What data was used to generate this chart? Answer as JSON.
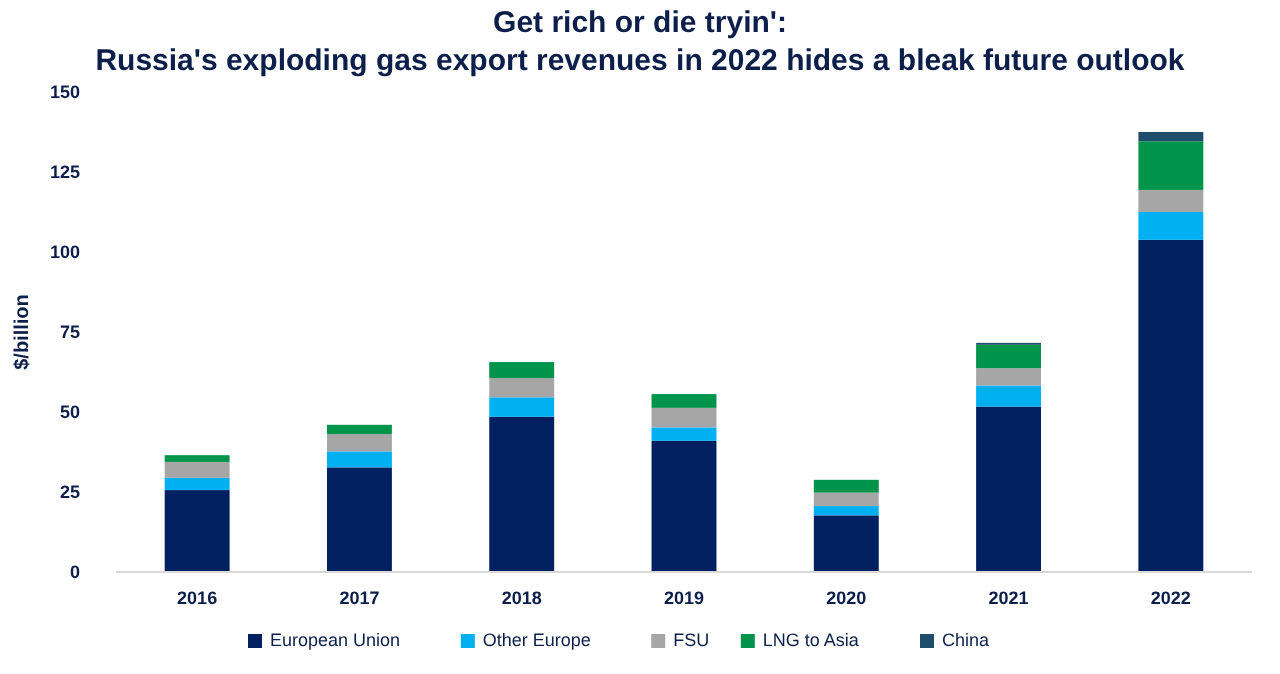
{
  "chart_data": {
    "type": "bar",
    "title": "Get rich or die tryin':",
    "subtitle": "Russia's exploding gas export revenues in 2022 hides a bleak future outlook",
    "ylabel": "$/billion",
    "categories": [
      "2016",
      "2017",
      "2018",
      "2019",
      "2020",
      "2021",
      "2022"
    ],
    "stacked": true,
    "ylim": [
      0,
      150
    ],
    "yticks": [
      0,
      25,
      50,
      75,
      100,
      125,
      150
    ],
    "grid": false,
    "legend": "bottom",
    "series": [
      {
        "name": "European Union",
        "color": "#002060",
        "values": [
          25.6,
          32.7,
          48.5,
          41,
          17.7,
          51.7,
          103.8
        ]
      },
      {
        "name": "Other Europe",
        "color": "#00b0f0",
        "values": [
          3.8,
          5,
          6.1,
          4.2,
          2.9,
          6.6,
          8.7
        ]
      },
      {
        "name": "FSU",
        "color": "#a6a6a6",
        "values": [
          5,
          5.4,
          6,
          6.1,
          4.2,
          5.4,
          6.9
        ]
      },
      {
        "name": "LNG to Asia",
        "color": "#00934a",
        "values": [
          2.1,
          2.9,
          5,
          4.3,
          4,
          7.3,
          15.2
        ]
      },
      {
        "name": "China",
        "color": "#1f4e6b",
        "values": [
          0,
          0,
          0,
          0,
          0,
          0.6,
          2.9
        ]
      }
    ]
  }
}
